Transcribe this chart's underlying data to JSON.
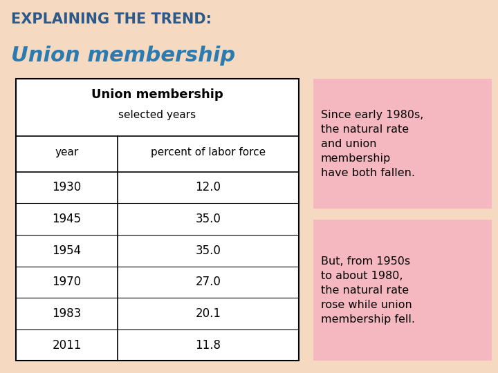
{
  "bg_color": "#f5d9c0",
  "title_line1": "EXPLAINING THE TREND:",
  "title_line2": "Union membership",
  "title_color1": "#2b5a8a",
  "title_color2": "#2b7ab0",
  "table_title": "Union membership",
  "table_subtitle": "selected years",
  "col_headers": [
    "year",
    "percent of labor force"
  ],
  "rows": [
    [
      "1930",
      "12.0"
    ],
    [
      "1945",
      "35.0"
    ],
    [
      "1954",
      "35.0"
    ],
    [
      "1970",
      "27.0"
    ],
    [
      "1983",
      "20.1"
    ],
    [
      "2011",
      "11.8"
    ]
  ],
  "box_color": "#f5b8c0",
  "box1_text": "Since early 1980s,\nthe natural rate\nand union\nmembership\nhave both fallen.",
  "box2_text": "But, from 1950s\nto about 1980,\nthe natural rate\nrose while union\nmembership fell.",
  "box_text_color": "#000000"
}
